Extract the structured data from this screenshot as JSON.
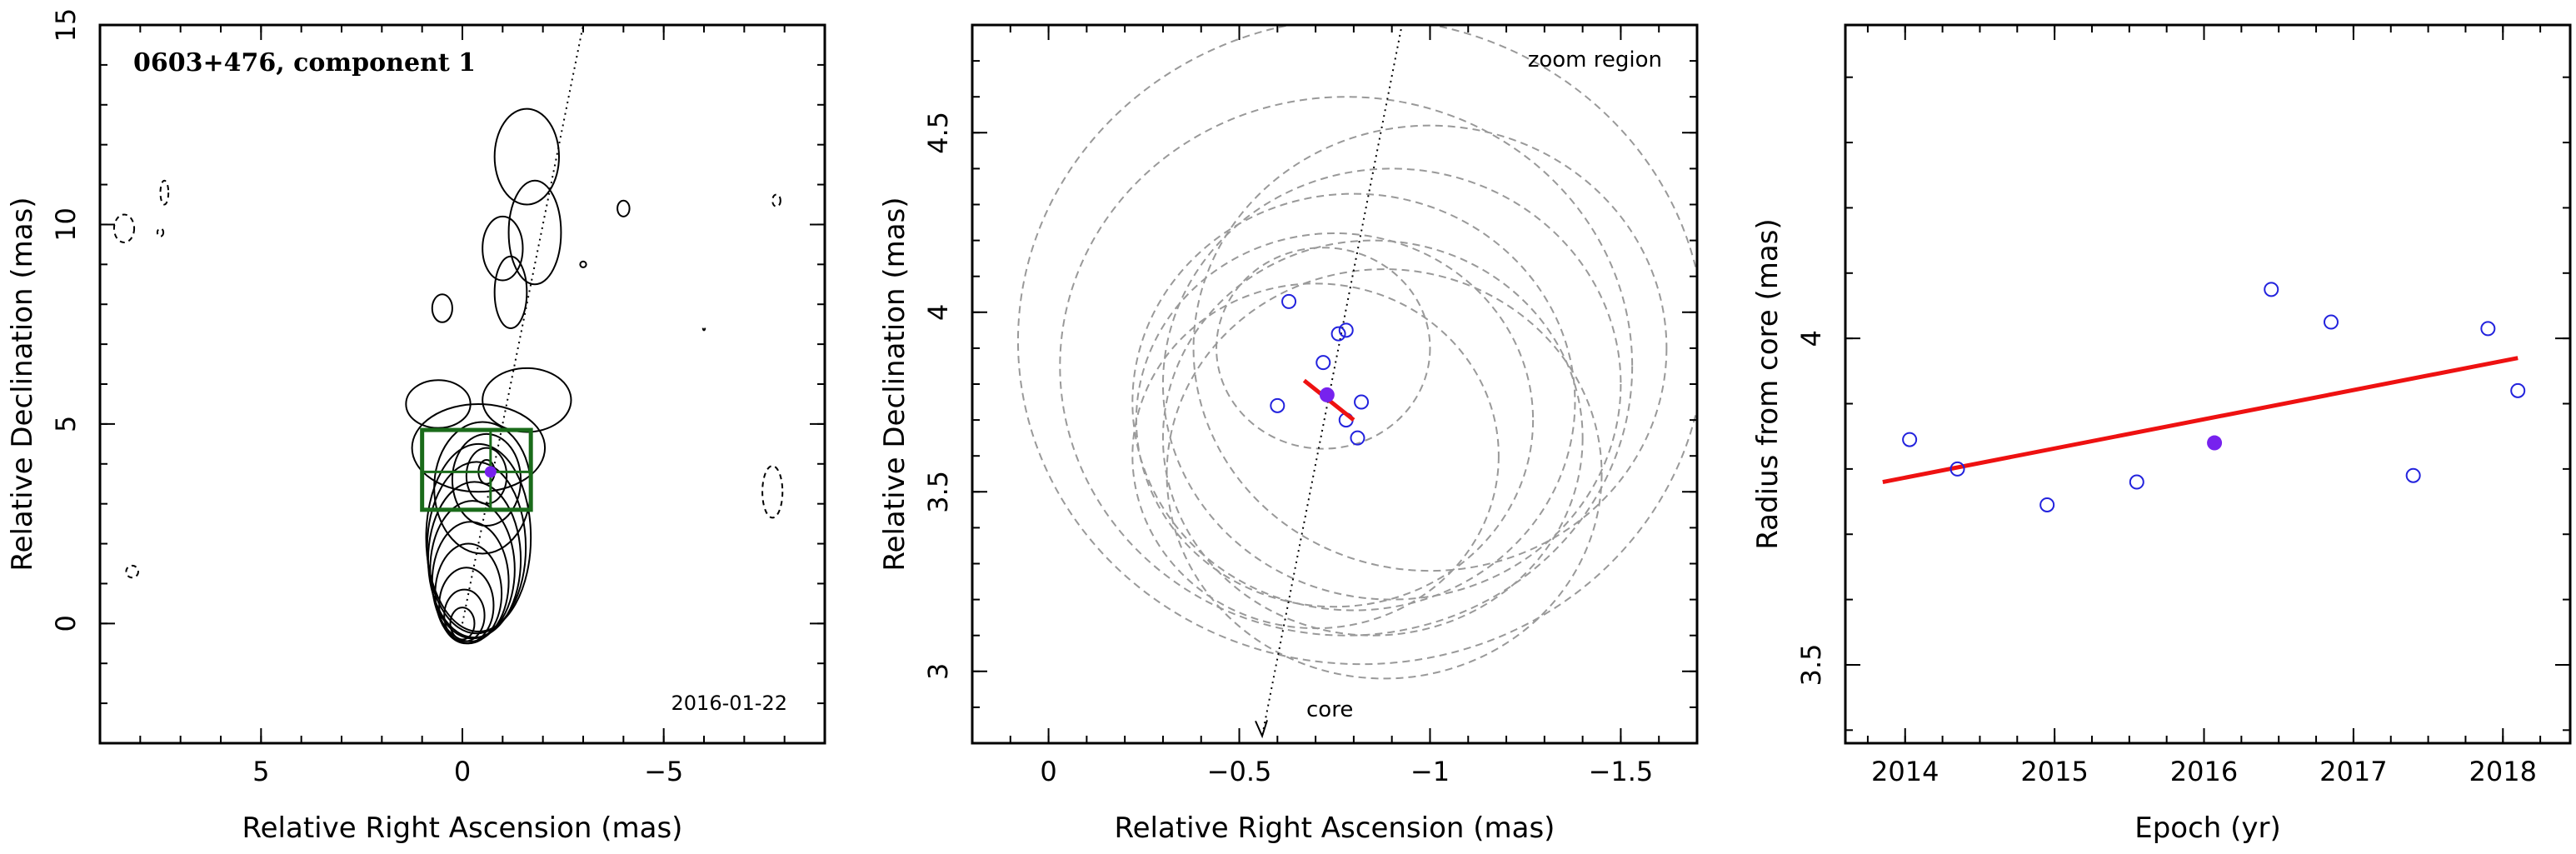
{
  "chart_data": [
    {
      "type": "contour",
      "title": "0603+476, component 1",
      "annotation": "2016-01-22",
      "xlabel": "Relative Right Ascension (mas)",
      "ylabel": "Relative Declination (mas)",
      "xlim": [
        9,
        -9
      ],
      "ylim": [
        -3,
        15
      ],
      "xticks": [
        5,
        0,
        -5
      ],
      "xtick_labels": [
        "5",
        "0",
        "−5"
      ],
      "yticks": [
        0,
        5,
        10,
        15
      ],
      "ytick_labels": [
        "0",
        "5",
        "10",
        "15"
      ],
      "component_position": [
        -0.7,
        3.8
      ],
      "zoom_box": {
        "x": [
          1.0,
          -1.7
        ],
        "y": [
          2.85,
          4.85
        ]
      },
      "jet_axis_line": [
        [
          0.0,
          0.0
        ],
        [
          -3.0,
          15.0
        ]
      ],
      "colors": {
        "box": "#1a6b1a",
        "marker": "#7722ee",
        "contour": "#000000"
      }
    },
    {
      "type": "scatter",
      "annotations": [
        "zoom region",
        "core"
      ],
      "xlabel": "Relative Right Ascension (mas)",
      "ylabel": "Relative Declination (mas)",
      "xlim": [
        0.2,
        -1.7
      ],
      "ylim": [
        2.8,
        4.8
      ],
      "xticks": [
        0,
        -0.5,
        -1,
        -1.5
      ],
      "xtick_labels": [
        "0",
        "−0.5",
        "−1",
        "−1.5"
      ],
      "yticks": [
        3,
        3.5,
        4,
        4.5
      ],
      "ytick_labels": [
        "3",
        "3.5",
        "4",
        "4.5"
      ],
      "series": [
        {
          "marker": "open-circle",
          "color": "#2222dd",
          "points": [
            [
              -0.63,
              4.03
            ],
            [
              -0.76,
              3.94
            ],
            [
              -0.78,
              3.95
            ],
            [
              -0.72,
              3.86
            ],
            [
              -0.6,
              3.74
            ],
            [
              -0.78,
              3.7
            ],
            [
              -0.82,
              3.75
            ],
            [
              -0.81,
              3.65
            ]
          ]
        },
        {
          "marker": "filled-circle",
          "color": "#7722ee",
          "points": [
            [
              -0.73,
              3.77
            ]
          ]
        }
      ],
      "motion_vector": {
        "color": "#ee1111",
        "from": [
          -0.67,
          3.81
        ],
        "to": [
          -0.8,
          3.7
        ]
      },
      "error_circles": [
        {
          "x": -0.72,
          "y": 3.9,
          "r": 0.28
        },
        {
          "x": -0.75,
          "y": 3.7,
          "r": 0.52
        },
        {
          "x": -0.8,
          "y": 3.75,
          "r": 0.58
        },
        {
          "x": -0.85,
          "y": 3.65,
          "r": 0.55
        },
        {
          "x": -0.9,
          "y": 3.8,
          "r": 0.6
        },
        {
          "x": -0.88,
          "y": 3.55,
          "r": 0.57
        },
        {
          "x": -0.78,
          "y": 3.85,
          "r": 0.75
        },
        {
          "x": -0.82,
          "y": 3.92,
          "r": 0.9
        },
        {
          "x": -1.0,
          "y": 3.9,
          "r": 0.62
        },
        {
          "x": -0.7,
          "y": 3.6,
          "r": 0.48
        }
      ],
      "core_direction_line": [
        [
          -0.93,
          4.82
        ],
        [
          -0.56,
          2.82
        ]
      ]
    },
    {
      "type": "scatter",
      "xlabel": "Epoch (yr)",
      "ylabel": "Radius from core (mas)",
      "xlim": [
        2013.6,
        2018.45
      ],
      "ylim": [
        3.38,
        4.48
      ],
      "xticks": [
        2014,
        2015,
        2016,
        2017,
        2018
      ],
      "xtick_labels": [
        "2014",
        "2015",
        "2016",
        "2017",
        "2018"
      ],
      "yticks": [
        3.5,
        4
      ],
      "ytick_labels": [
        "3.5",
        "4"
      ],
      "series": [
        {
          "marker": "open-circle",
          "color": "#2222dd",
          "x": [
            2014.03,
            2014.35,
            2014.95,
            2015.55,
            2016.45,
            2016.85,
            2017.4,
            2017.9,
            2018.1
          ],
          "y": [
            3.845,
            3.8,
            3.745,
            3.78,
            4.075,
            4.025,
            3.79,
            4.015,
            3.92
          ]
        },
        {
          "marker": "filled-circle",
          "color": "#7722ee",
          "x": [
            2016.07
          ],
          "y": [
            3.84
          ]
        }
      ],
      "fit_line": {
        "color": "#ee1111",
        "x": [
          2013.85,
          2018.1
        ],
        "y": [
          3.78,
          3.97
        ]
      }
    }
  ]
}
